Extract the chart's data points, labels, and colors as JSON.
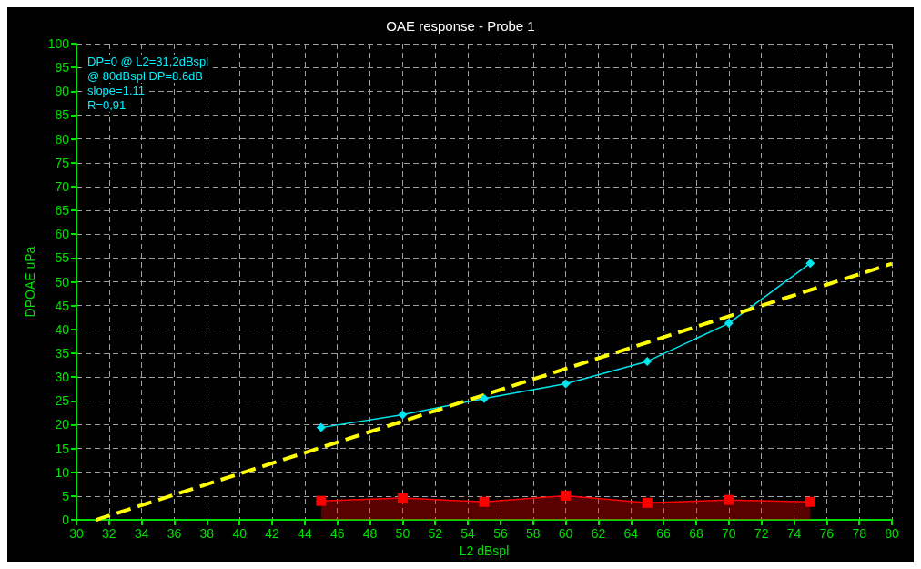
{
  "chart_data": {
    "type": "line",
    "title": "OAE response - Probe 1",
    "xlabel": "L2 dBspl",
    "ylabel": "DPOAE uPa",
    "annotations": [
      "DP=0 @ L2=31,2dBspl",
      "@ 80dBspl DP=8.6dB",
      "slope=1.11",
      "R=0,91"
    ],
    "x": [
      45,
      50,
      55,
      60,
      65,
      70,
      75
    ],
    "series": [
      {
        "color": "#00e5ee",
        "marker": "diamond",
        "values": [
          19.4,
          22.1,
          25.5,
          28.6,
          33.3,
          41.3,
          53.9
        ]
      },
      {
        "type": "area",
        "color": "#ff0000",
        "marker": "square",
        "values": [
          4.0,
          4.6,
          3.8,
          5.1,
          3.6,
          4.2,
          3.8
        ]
      },
      {
        "type": "line",
        "color": "#ffff00",
        "marker": "none",
        "line_style": "dashed",
        "x": [
          31.2,
          80
        ],
        "values": [
          0,
          53.8
        ]
      }
    ],
    "xlim": [
      30,
      80
    ],
    "xticks": [
      30,
      32,
      34,
      36,
      38,
      40,
      42,
      44,
      46,
      48,
      50,
      52,
      54,
      56,
      58,
      60,
      62,
      64,
      66,
      68,
      70,
      72,
      74,
      76,
      78,
      80
    ],
    "ylim": [
      0,
      100
    ],
    "yticks": [
      0,
      5,
      10,
      15,
      20,
      25,
      30,
      35,
      40,
      45,
      50,
      55,
      60,
      65,
      70,
      75,
      80,
      85,
      90,
      95,
      100
    ],
    "grid": true
  }
}
